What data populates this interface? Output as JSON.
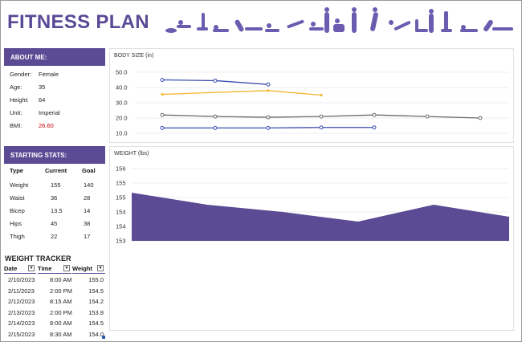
{
  "header": {
    "title": "FITNESS PLAN"
  },
  "about": {
    "heading": "ABOUT ME:",
    "rows": [
      {
        "label": "Gender:",
        "value": "Female"
      },
      {
        "label": "Age:",
        "value": "35"
      },
      {
        "label": "Height:",
        "value": "64"
      },
      {
        "label": "Unit:",
        "value": "Imperial"
      },
      {
        "label": "BMI:",
        "value": "26.60"
      }
    ]
  },
  "stats": {
    "heading": "STARTING STATS:",
    "columns": [
      "Type",
      "Current",
      "Goal"
    ],
    "rows": [
      [
        "Weight",
        "155",
        "140"
      ],
      [
        "Waist",
        "36",
        "28"
      ],
      [
        "Bicep",
        "13.5",
        "14"
      ],
      [
        "Hips",
        "45",
        "38"
      ],
      [
        "Thigh",
        "22",
        "17"
      ]
    ]
  },
  "tracker": {
    "title": "WEIGHT TRACKER",
    "columns": [
      "Date",
      "Time",
      "Weight"
    ],
    "dropdown_glyph": "▾",
    "rows": [
      [
        "2/10/2023",
        "8:00 AM",
        "155.0"
      ],
      [
        "2/11/2023",
        "2:00 PM",
        "154.5"
      ],
      [
        "2/12/2023",
        "8:15 AM",
        "154.2"
      ],
      [
        "2/13/2023",
        "2:00 PM",
        "153.8"
      ],
      [
        "2/14/2023",
        "8:00 AM",
        "154.5"
      ],
      [
        "2/15/2023",
        "8:30 AM",
        "154.0"
      ]
    ]
  },
  "colors": {
    "brand": "#5b4b94",
    "bmi": "#c00000",
    "weight_fill": "#5b4b94"
  },
  "chart_data": [
    {
      "type": "line",
      "title": "BODY SIZE (in)",
      "ylim": [
        10,
        50
      ],
      "yticks": [
        "50.0",
        "40.0",
        "30.0",
        "20.0",
        "10.0"
      ],
      "grid": true,
      "points_per_series": 7,
      "series": [
        {
          "color": "#3b4cb0",
          "values": [
            45,
            44.5,
            42,
            null,
            null,
            null,
            null
          ]
        },
        {
          "color": "#f5b731",
          "values": [
            35.5,
            null,
            38,
            35,
            null,
            null,
            null
          ]
        },
        {
          "color": "#6a6a6a",
          "values": [
            22,
            21,
            20.5,
            21,
            22,
            21,
            20
          ]
        },
        {
          "color": "#3b4cb0",
          "values": [
            13.5,
            13.5,
            13.5,
            13.8,
            13.8,
            null,
            null
          ]
        }
      ]
    },
    {
      "type": "area",
      "title": "WEIGHT (lbs)",
      "ylim": [
        153,
        156
      ],
      "yticks": [
        "156",
        "155",
        "155",
        "154",
        "154",
        "153"
      ],
      "grid": true,
      "values": [
        155.0,
        154.5,
        154.2,
        153.8,
        154.5,
        154.0
      ]
    }
  ]
}
